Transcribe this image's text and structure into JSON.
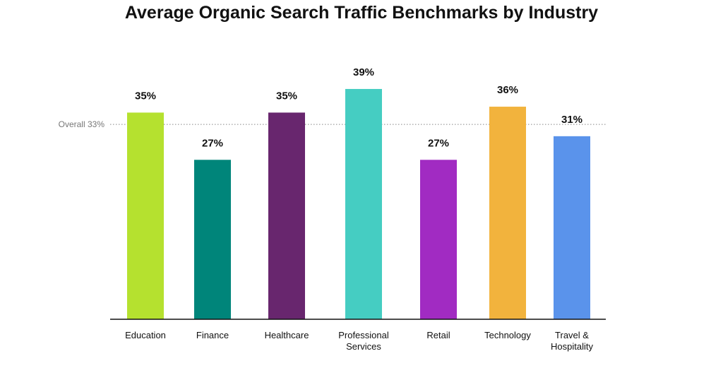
{
  "chart_data": {
    "type": "bar",
    "title": "Average Organic Search Traffic Benchmarks by Industry",
    "categories": [
      "Education",
      "Finance",
      "Healthcare",
      "Professional Services",
      "Retail",
      "Technology",
      "Travel & Hospitality"
    ],
    "category_lines": [
      [
        "Education"
      ],
      [
        "Finance"
      ],
      [
        "Healthcare"
      ],
      [
        "Professional",
        "Services"
      ],
      [
        "Retail"
      ],
      [
        "Technology"
      ],
      [
        "Travel &",
        "Hospitality"
      ]
    ],
    "values": [
      35,
      27,
      35,
      39,
      27,
      36,
      31
    ],
    "data_labels": [
      "35%",
      "27%",
      "35%",
      "39%",
      "27%",
      "36%",
      "31%"
    ],
    "colors": [
      "#b5e12f",
      "#00857a",
      "#68266e",
      "#45cdc2",
      "#a12bc2",
      "#f2b33d",
      "#5a93eb"
    ],
    "reference_line": {
      "label": "Overall 33%",
      "value": 33,
      "style": "dotted"
    },
    "xlabel": "",
    "ylabel": "",
    "ylim": [
      0,
      40
    ],
    "grid": false,
    "legend": "none"
  }
}
